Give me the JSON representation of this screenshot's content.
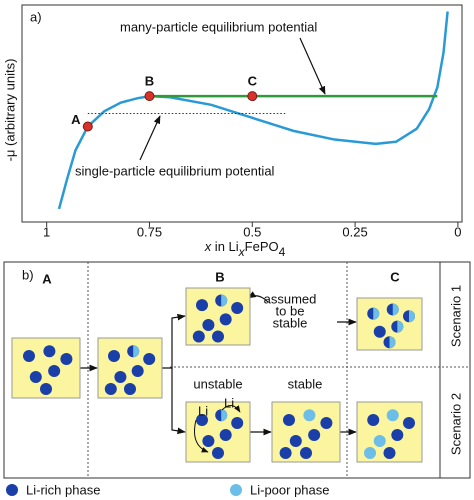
{
  "chart_data": {
    "type": "line",
    "panel_label": "a)",
    "ylabel": "-μ (arbitrary units)",
    "xlabel_parts": [
      "x",
      " in Li",
      "x",
      "FePO",
      "4"
    ],
    "xlim": [
      1.06,
      -0.01
    ],
    "ylim": [
      0,
      100
    ],
    "xticks": [
      1,
      0.75,
      0.5,
      0.25,
      0
    ],
    "series": [
      {
        "color": "#2a9ad6",
        "x": [
          0.97,
          0.95,
          0.93,
          0.9,
          0.86,
          0.82,
          0.78,
          0.75,
          0.7,
          0.6,
          0.5,
          0.4,
          0.3,
          0.2,
          0.15,
          0.1,
          0.07,
          0.05,
          0.035,
          0.025
        ],
        "values": [
          6,
          20,
          33,
          44,
          51,
          55,
          57,
          58,
          57.5,
          54,
          48,
          42,
          38,
          36,
          37,
          43,
          52,
          62,
          78,
          97
        ]
      },
      {
        "color": "#2e9a3a",
        "x": [
          0.75,
          0.05
        ],
        "values": [
          58,
          58
        ]
      },
      {
        "color": "#333333",
        "dashed": true,
        "x": [
          0.9,
          0.42
        ],
        "values": [
          50,
          50
        ]
      }
    ],
    "points": [
      {
        "label": "A",
        "x": 0.9,
        "y": 44,
        "color": "#d9322b"
      },
      {
        "label": "B",
        "x": 0.75,
        "y": 58,
        "color": "#d9322b"
      },
      {
        "label": "C",
        "x": 0.5,
        "y": 58,
        "color": "#d9322b"
      }
    ],
    "annotations": [
      "many-particle equilibrium potential",
      "single-particle equilibrium potential"
    ]
  },
  "diagram": {
    "panel_label": "b)",
    "columns": [
      "A",
      "B",
      "C"
    ],
    "rows": [
      "Scenario 1",
      "Scenario 2"
    ],
    "assumed_note": [
      "assumed",
      "to be",
      "stable"
    ],
    "unstable": "unstable",
    "stable": "stable",
    "li_labels": [
      "Li",
      "Li"
    ],
    "legend": [
      "Li-rich phase",
      "Li-poor phase"
    ]
  }
}
